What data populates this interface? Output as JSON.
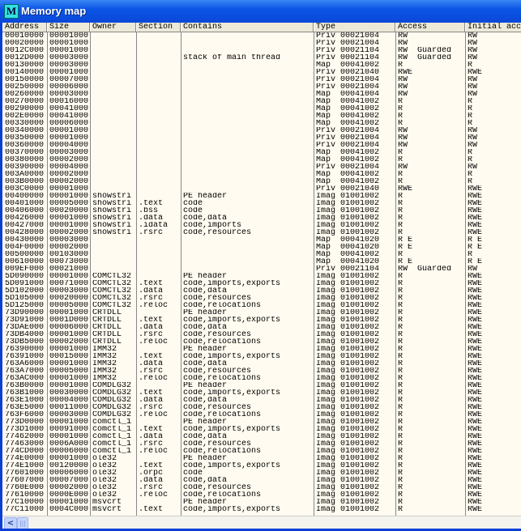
{
  "window": {
    "title": "Memory map",
    "icon_letter": "M"
  },
  "columns": [
    "Address",
    "Size",
    "Owner",
    "Section",
    "Contains",
    "Type",
    "Access",
    "Initial acc"
  ],
  "rows": [
    [
      "00010000",
      "00001000",
      "",
      "",
      "",
      "Priv 00021004",
      "RW",
      "RW"
    ],
    [
      "00020000",
      "00001000",
      "",
      "",
      "",
      "Priv 00021004",
      "RW",
      "RW"
    ],
    [
      "0012C000",
      "00001000",
      "",
      "",
      "",
      "Priv 00021104",
      "RW  Guarded",
      "RW"
    ],
    [
      "0012D000",
      "00003000",
      "",
      "",
      "stack of main thread",
      "Priv 00021104",
      "RW  Guarded",
      "RW"
    ],
    [
      "00130000",
      "00003000",
      "",
      "",
      "",
      "Map  00041002",
      "R",
      "R"
    ],
    [
      "00140000",
      "00001000",
      "",
      "",
      "",
      "Priv 00021040",
      "RWE",
      "RWE"
    ],
    [
      "00150000",
      "00007000",
      "",
      "",
      "",
      "Priv 00021004",
      "RW",
      "RW"
    ],
    [
      "00250000",
      "00006000",
      "",
      "",
      "",
      "Priv 00021004",
      "RW",
      "RW"
    ],
    [
      "00260000",
      "00003000",
      "",
      "",
      "",
      "Map  00041004",
      "RW",
      "RW"
    ],
    [
      "00270000",
      "00016000",
      "",
      "",
      "",
      "Map  00041002",
      "R",
      "R"
    ],
    [
      "00290000",
      "00041000",
      "",
      "",
      "",
      "Map  00041002",
      "R",
      "R"
    ],
    [
      "002E0000",
      "00041000",
      "",
      "",
      "",
      "Map  00041002",
      "R",
      "R"
    ],
    [
      "00330000",
      "00006000",
      "",
      "",
      "",
      "Map  00041002",
      "R",
      "R"
    ],
    [
      "00340000",
      "00001000",
      "",
      "",
      "",
      "Priv 00021004",
      "RW",
      "RW"
    ],
    [
      "00350000",
      "00001000",
      "",
      "",
      "",
      "Priv 00021004",
      "RW",
      "RW"
    ],
    [
      "00360000",
      "00004000",
      "",
      "",
      "",
      "Priv 00021004",
      "RW",
      "RW"
    ],
    [
      "00370000",
      "00003000",
      "",
      "",
      "",
      "Map  00041002",
      "R",
      "R"
    ],
    [
      "00380000",
      "00002000",
      "",
      "",
      "",
      "Map  00041002",
      "R",
      "R"
    ],
    [
      "00390000",
      "00004000",
      "",
      "",
      "",
      "Priv 00021004",
      "RW",
      "RW"
    ],
    [
      "003A0000",
      "00002000",
      "",
      "",
      "",
      "Map  00041002",
      "R",
      "R"
    ],
    [
      "003B0000",
      "00002000",
      "",
      "",
      "",
      "Map  00041002",
      "R",
      "R"
    ],
    [
      "003C0000",
      "00001000",
      "",
      "",
      "",
      "Priv 00021040",
      "RWE",
      "RWE"
    ],
    [
      "00400000",
      "00001000",
      "showstri",
      "",
      "PE header",
      "Imag 01001002",
      "R",
      "RWE"
    ],
    [
      "00401000",
      "00005000",
      "showstri",
      ".text",
      "code",
      "Imag 01001002",
      "R",
      "RWE"
    ],
    [
      "00406000",
      "00020000",
      "showstri",
      ".bss",
      "code",
      "Imag 01001002",
      "R",
      "RWE"
    ],
    [
      "00426000",
      "00001000",
      "showstri",
      ".data",
      "code,data",
      "Imag 01001002",
      "R",
      "RWE"
    ],
    [
      "00427000",
      "00001000",
      "showstri",
      ".idata",
      "code,imports",
      "Imag 01001002",
      "R",
      "RWE"
    ],
    [
      "00428000",
      "00002000",
      "showstri",
      ".rsrc",
      "code,resources",
      "Imag 01001002",
      "R",
      "RWE"
    ],
    [
      "00430000",
      "00003000",
      "",
      "",
      "",
      "Map  00041020",
      "R E",
      "R E"
    ],
    [
      "004F0000",
      "00002000",
      "",
      "",
      "",
      "Map  00041020",
      "R E",
      "R E"
    ],
    [
      "00500000",
      "00103000",
      "",
      "",
      "",
      "Map  00041002",
      "R",
      "R"
    ],
    [
      "00610000",
      "00073000",
      "",
      "",
      "",
      "Map  00041020",
      "R E",
      "R E"
    ],
    [
      "009EF000",
      "00021000",
      "",
      "",
      "",
      "Priv 00021104",
      "RW  Guarded",
      "RW"
    ],
    [
      "5D090000",
      "00001000",
      "COMCTL32",
      "",
      "PE header",
      "Imag 01001002",
      "R",
      "RWE"
    ],
    [
      "5D091000",
      "00071000",
      "COMCTL32",
      ".text",
      "code,imports,exports",
      "Imag 01001002",
      "R",
      "RWE"
    ],
    [
      "5D102000",
      "00003000",
      "COMCTL32",
      ".data",
      "code,data",
      "Imag 01001002",
      "R",
      "RWE"
    ],
    [
      "5D105000",
      "00020000",
      "COMCTL32",
      ".rsrc",
      "code,resources",
      "Imag 01001002",
      "R",
      "RWE"
    ],
    [
      "5D125000",
      "00005000",
      "COMCTL32",
      ".reloc",
      "code,relocations",
      "Imag 01001002",
      "R",
      "RWE"
    ],
    [
      "73D90000",
      "00001000",
      "CRTDLL",
      "",
      "PE header",
      "Imag 01001002",
      "R",
      "RWE"
    ],
    [
      "73D91000",
      "0001D000",
      "CRTDLL",
      ".text",
      "code,imports,exports",
      "Imag 01001002",
      "R",
      "RWE"
    ],
    [
      "73DAE000",
      "00006000",
      "CRTDLL",
      ".data",
      "code,data",
      "Imag 01001002",
      "R",
      "RWE"
    ],
    [
      "73DB4000",
      "00001000",
      "CRTDLL",
      ".rsrc",
      "code,resources",
      "Imag 01001002",
      "R",
      "RWE"
    ],
    [
      "73DB5000",
      "00002000",
      "CRTDLL",
      ".reloc",
      "code,relocations",
      "Imag 01001002",
      "R",
      "RWE"
    ],
    [
      "76390000",
      "00001000",
      "IMM32",
      "",
      "PE header",
      "Imag 01001002",
      "R",
      "RWE"
    ],
    [
      "76391000",
      "00015000",
      "IMM32",
      ".text",
      "code,imports,exports",
      "Imag 01001002",
      "R",
      "RWE"
    ],
    [
      "763A6000",
      "00001000",
      "IMM32",
      ".data",
      "code,data",
      "Imag 01001002",
      "R",
      "RWE"
    ],
    [
      "763A7000",
      "00005000",
      "IMM32",
      ".rsrc",
      "code,resources",
      "Imag 01001002",
      "R",
      "RWE"
    ],
    [
      "763AC000",
      "00001000",
      "IMM32",
      ".reloc",
      "code,relocations",
      "Imag 01001002",
      "R",
      "RWE"
    ],
    [
      "763B0000",
      "00001000",
      "COMDLG32",
      "",
      "PE header",
      "Imag 01001002",
      "R",
      "RWE"
    ],
    [
      "763B1000",
      "00030000",
      "COMDLG32",
      ".text",
      "code,imports,exports",
      "Imag 01001002",
      "R",
      "RWE"
    ],
    [
      "763E1000",
      "00004000",
      "COMDLG32",
      ".data",
      "code,data",
      "Imag 01001002",
      "R",
      "RWE"
    ],
    [
      "763E5000",
      "00011000",
      "COMDLG32",
      ".rsrc",
      "code,resources",
      "Imag 01001002",
      "R",
      "RWE"
    ],
    [
      "763F6000",
      "00003000",
      "COMDLG32",
      ".reloc",
      "code,relocations",
      "Imag 01001002",
      "R",
      "RWE"
    ],
    [
      "773D0000",
      "00001000",
      "comctl_1",
      "",
      "PE header",
      "Imag 01001002",
      "R",
      "RWE"
    ],
    [
      "773D1000",
      "00091000",
      "comctl_1",
      ".text",
      "code,imports,exports",
      "Imag 01001002",
      "R",
      "RWE"
    ],
    [
      "77462000",
      "00001000",
      "comctl_1",
      ".data",
      "code,data",
      "Imag 01001002",
      "R",
      "RWE"
    ],
    [
      "77463000",
      "0006A000",
      "comctl_1",
      ".rsrc",
      "code,resources",
      "Imag 01001002",
      "R",
      "RWE"
    ],
    [
      "774CD000",
      "00006000",
      "comctl_1",
      ".reloc",
      "code,relocations",
      "Imag 01001002",
      "R",
      "RWE"
    ],
    [
      "774E0000",
      "00001000",
      "ole32",
      "",
      "PE header",
      "Imag 01001002",
      "R",
      "RWE"
    ],
    [
      "774E1000",
      "00120000",
      "ole32",
      ".text",
      "code,imports,exports",
      "Imag 01001002",
      "R",
      "RWE"
    ],
    [
      "77601000",
      "00006000",
      "ole32",
      ".orpc",
      "code",
      "Imag 01001002",
      "R",
      "RWE"
    ],
    [
      "77607000",
      "00007000",
      "ole32",
      ".data",
      "code,data",
      "Imag 01001002",
      "R",
      "RWE"
    ],
    [
      "7760E000",
      "00002000",
      "ole32",
      ".rsrc",
      "code,resources",
      "Imag 01001002",
      "R",
      "RWE"
    ],
    [
      "77610000",
      "0000E000",
      "ole32",
      ".reloc",
      "code,relocations",
      "Imag 01001002",
      "R",
      "RWE"
    ],
    [
      "77C10000",
      "00001000",
      "msvcrt",
      "",
      "PE header",
      "Imag 01001002",
      "R",
      "RWE"
    ],
    [
      "77C11000",
      "0004C000",
      "msvcrt",
      ".text",
      "code,imports,exports",
      "Imag 01001002",
      "R",
      "RWE"
    ]
  ],
  "scrollbar": {
    "left_arrow": "<",
    "thumb": "|||"
  }
}
